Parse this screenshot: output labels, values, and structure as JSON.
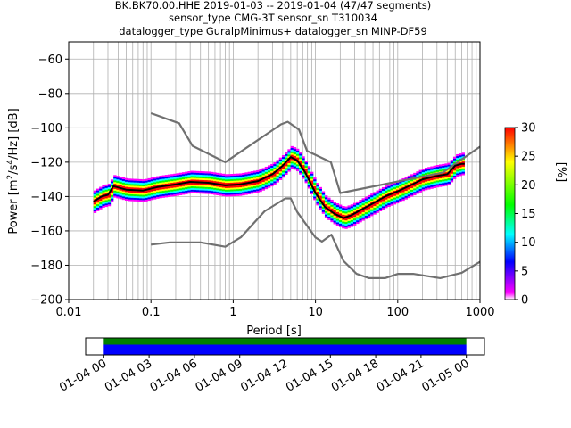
{
  "chart_data": [
    {
      "type": "heatmap",
      "title_lines": [
        "BK.BK70.00.HHE   2019-01-03 -- 2019-01-04  (47/47 segments)",
        "sensor_type CMG-3T sensor_sn T310034",
        "datalogger_type GuralpMinimus+ datalogger_sn MINP-DF59"
      ],
      "xlabel": "Period [s]",
      "ylabel_parts": [
        "Power [m",
        "2",
        "/s",
        "4",
        "/Hz] [dB]"
      ],
      "x_scale": "log",
      "xlim": [
        0.01,
        1000
      ],
      "ylim": [
        -200,
        -50
      ],
      "x_ticks": [
        0.01,
        0.1,
        1,
        10,
        100,
        1000
      ],
      "x_tick_labels": [
        "0.01",
        "0.1",
        "1",
        "10",
        "100",
        "1000"
      ],
      "y_ticks": [
        -200,
        -180,
        -160,
        -140,
        -120,
        -100,
        -80,
        -60
      ],
      "y_tick_labels": [
        "−200",
        "−180",
        "−160",
        "−140",
        "−120",
        "−100",
        "−80",
        "−60"
      ],
      "grid": true,
      "series": [
        {
          "role": "noise-model-high",
          "color": "#707070",
          "x": [
            0.1,
            0.22,
            0.32,
            0.8,
            3.8,
            4.6,
            6.3,
            7.9,
            15.4,
            20,
            354.8,
            1000
          ],
          "y": [
            -91.5,
            -97.4,
            -110.5,
            -120,
            -98,
            -96.5,
            -101,
            -113.5,
            -120,
            -138,
            -126,
            -111
          ]
        },
        {
          "role": "noise-model-low",
          "color": "#707070",
          "x": [
            0.1,
            0.17,
            0.4,
            0.8,
            1.24,
            2.4,
            4.3,
            5.0,
            6.0,
            10.0,
            12.0,
            15.6,
            21.9,
            31.6,
            45.0,
            70.0,
            101.0,
            154.0,
            328.0,
            600.0,
            1000.0
          ],
          "y": [
            -168,
            -166.7,
            -166.7,
            -169.2,
            -163.7,
            -148.6,
            -141.1,
            -141.1,
            -149,
            -163.8,
            -166.2,
            -162.2,
            -177.5,
            -185,
            -187.5,
            -187.5,
            -185,
            -185,
            -187.5,
            -184.4,
            -178
          ]
        },
        {
          "role": "mode",
          "color": "#000000",
          "x": [
            0.02,
            0.025,
            0.03,
            0.035,
            0.05,
            0.08,
            0.12,
            0.2,
            0.3,
            0.5,
            0.8,
            1.2,
            2.0,
            3.0,
            4.0,
            5.0,
            6.0,
            7.5,
            10.0,
            13.0,
            17.0,
            22.0,
            27.0,
            35.0,
            50.0,
            70.0,
            100.0,
            150.0,
            200.0,
            300.0,
            400.0,
            500.0,
            600.0,
            650.0
          ],
          "y": [
            -143,
            -140,
            -139,
            -134,
            -136,
            -136.5,
            -134.5,
            -133,
            -131.5,
            -132,
            -133.5,
            -133,
            -131,
            -127,
            -122,
            -117,
            -119,
            -126,
            -138,
            -146,
            -150,
            -152.5,
            -151,
            -148,
            -144,
            -140,
            -137,
            -133,
            -130,
            -128,
            -127,
            -122,
            -121,
            -121
          ]
        }
      ],
      "colorbar": {
        "label": "[%]",
        "min": 0,
        "max": 30,
        "ticks": [
          0,
          5,
          10,
          15,
          20,
          25,
          30
        ],
        "tick_labels": [
          "0",
          "5",
          "10",
          "15",
          "20",
          "25",
          "30"
        ],
        "colors": [
          "#ffffff",
          "#ff00ff",
          "#0000ff",
          "#00ffff",
          "#00ff00",
          "#ffff00",
          "#ff0000"
        ]
      }
    },
    {
      "type": "bar",
      "role": "data-coverage",
      "x_tick_labels": [
        "01-04 00",
        "01-04 03",
        "01-04 06",
        "01-04 09",
        "01-04 12",
        "01-04 15",
        "01-04 18",
        "01-04 21",
        "01-05 00"
      ],
      "x_tick_hours": [
        0,
        3,
        6,
        9,
        12,
        15,
        18,
        21,
        24
      ],
      "xlim_hours": [
        -1.2,
        25.2
      ],
      "coverage_hours": [
        0,
        24
      ],
      "colors": {
        "top": "#008000",
        "bottom": "#0000ff"
      }
    }
  ]
}
